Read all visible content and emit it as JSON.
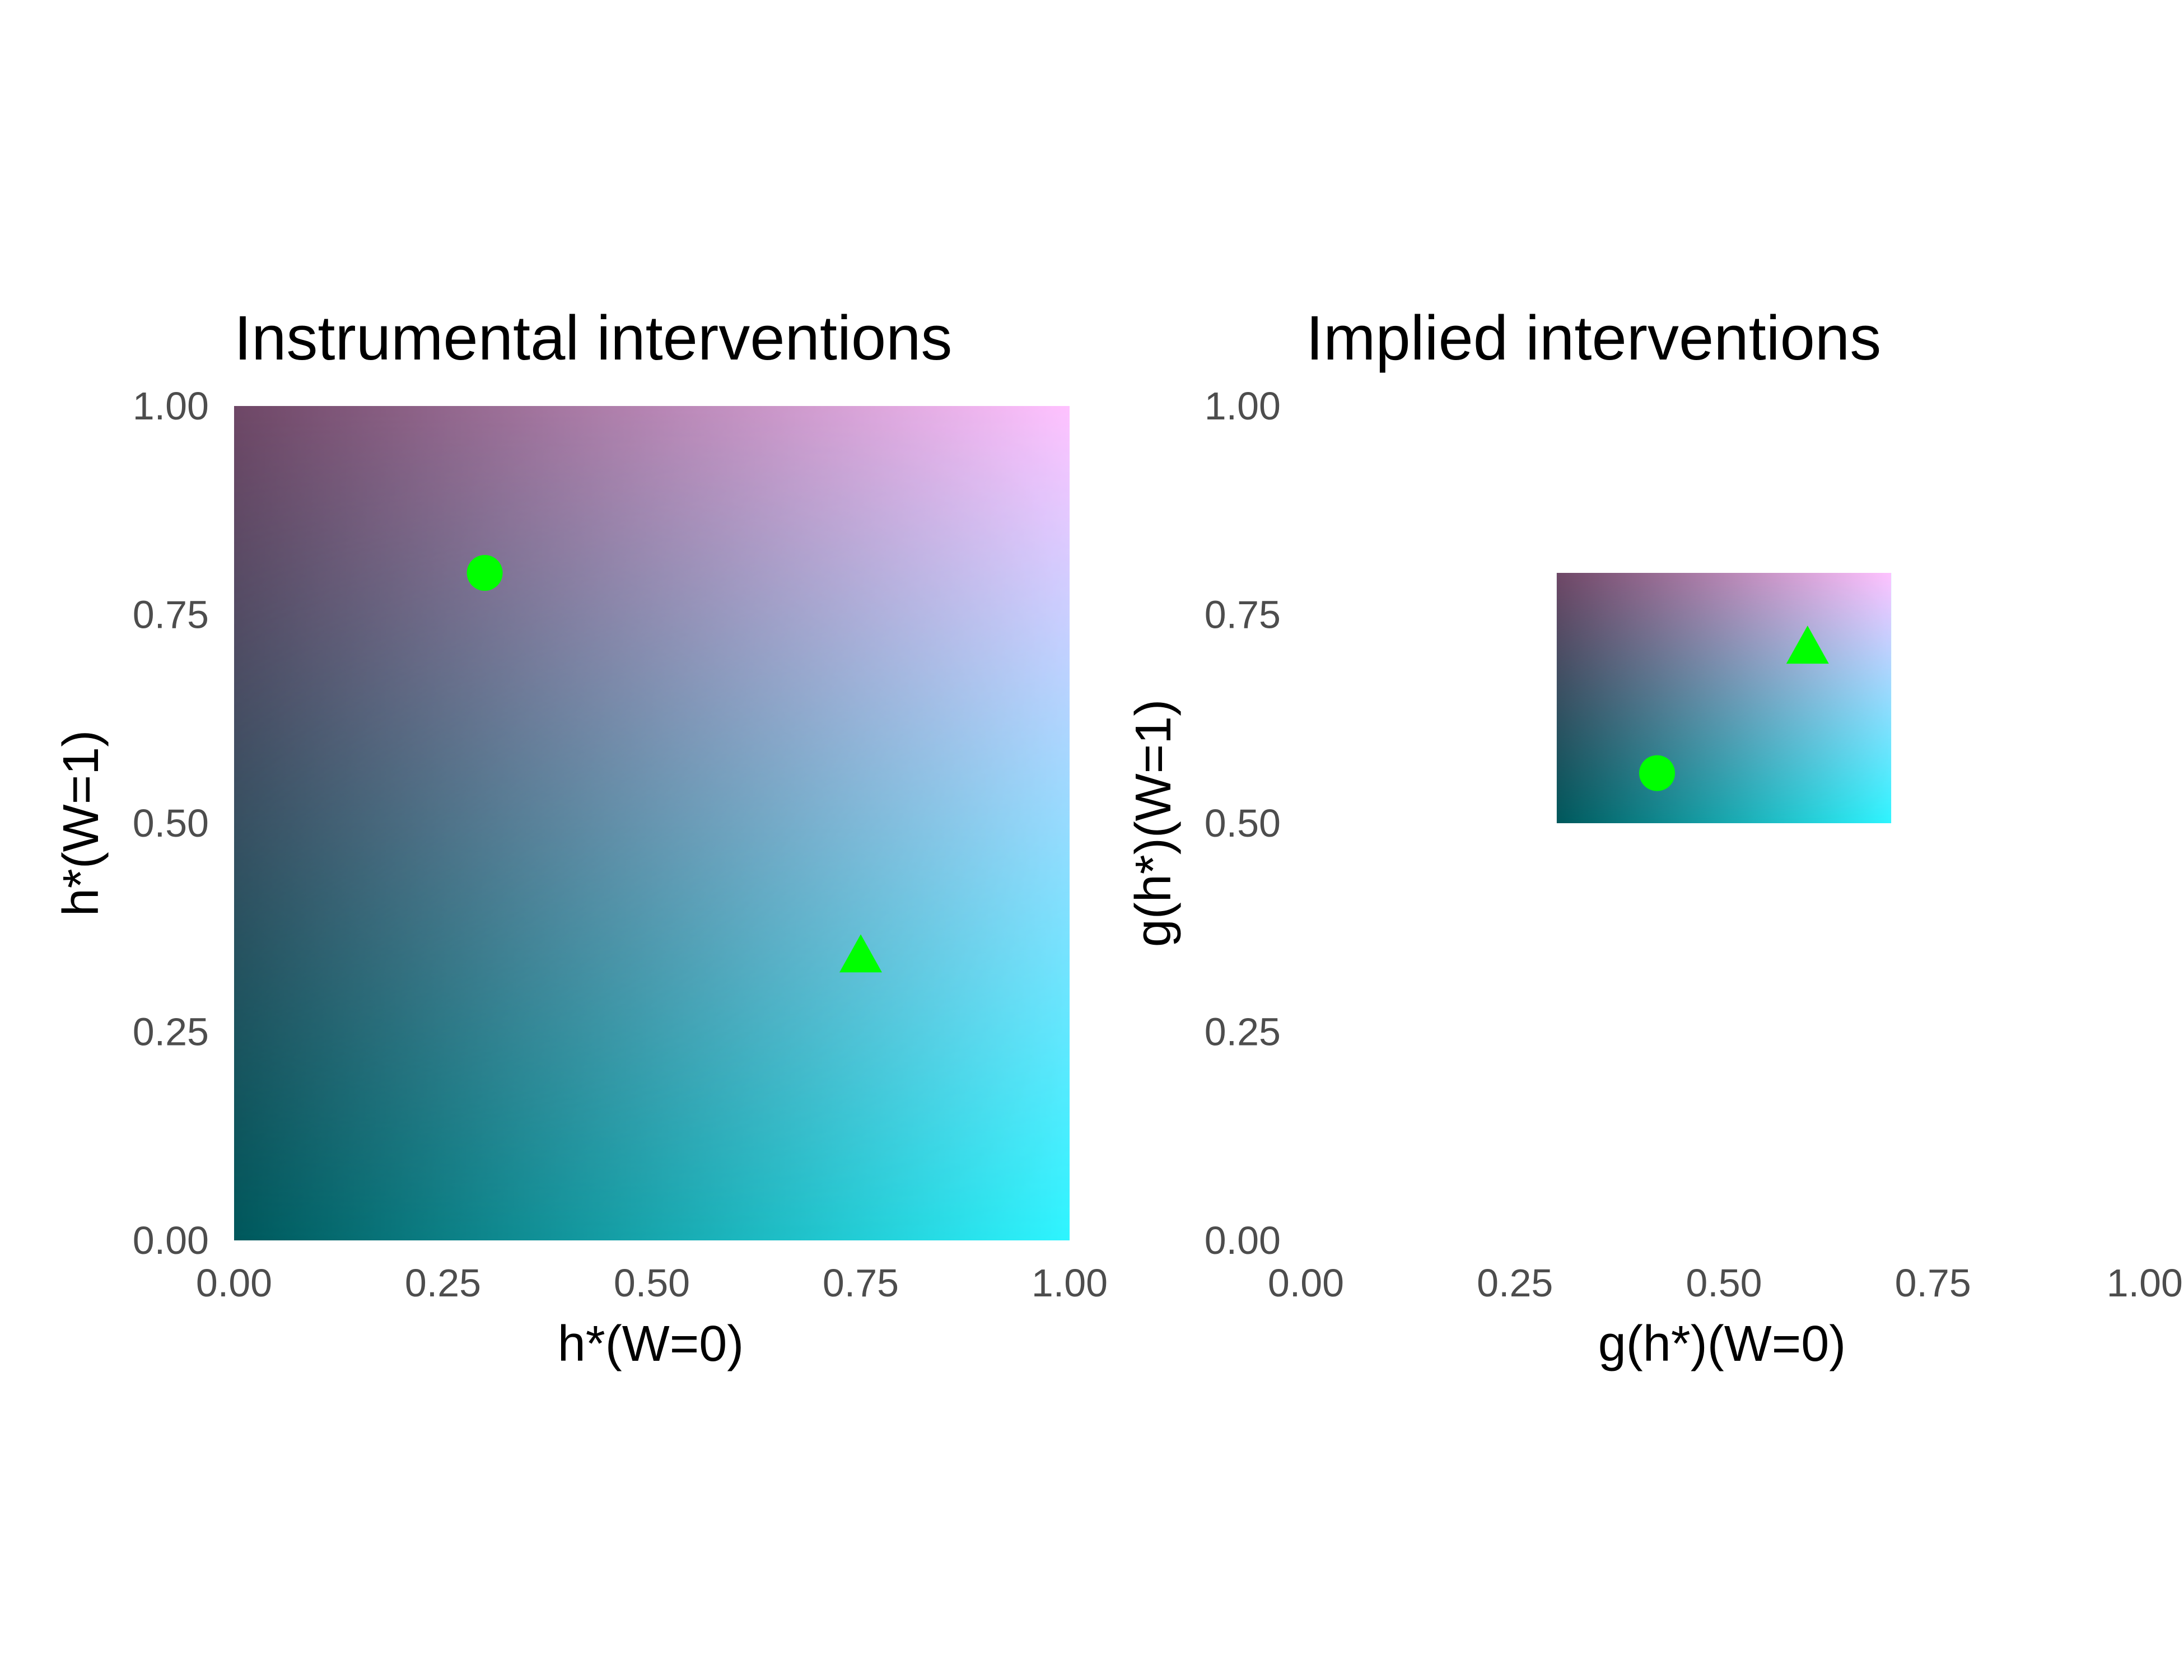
{
  "colors": {
    "corner_bottom_left": "#00585c",
    "corner_bottom_right": "#2ef5ff",
    "corner_top_left": "#6e4766",
    "corner_top_right": "#ffc2ff",
    "marker": "#00ff00",
    "tick_text": "#4d4d4d",
    "title_text": "#000000"
  },
  "chart_data": [
    {
      "type": "scatter",
      "title": "Instrumental interventions",
      "xlabel": "h*(W=0)",
      "ylabel": "h*(W=1)",
      "xlim": [
        0,
        1
      ],
      "ylim": [
        0,
        1
      ],
      "grid": false,
      "background_region": {
        "x": [
          0,
          1
        ],
        "y": [
          0,
          1
        ]
      },
      "x_ticks": [
        "0.00",
        "0.25",
        "0.50",
        "0.75",
        "1.00"
      ],
      "y_ticks": [
        "0.00",
        "0.25",
        "0.50",
        "0.75",
        "1.00"
      ],
      "points": [
        {
          "x": 0.3,
          "y": 0.8,
          "shape": "circle"
        },
        {
          "x": 0.75,
          "y": 0.34,
          "shape": "triangle"
        }
      ]
    },
    {
      "type": "scatter",
      "title": "Implied interventions",
      "xlabel": "g(h*)(W=0)",
      "ylabel": "g(h*)(W=1)",
      "xlim": [
        0,
        1
      ],
      "ylim": [
        0,
        1
      ],
      "grid": false,
      "background_region": {
        "x": [
          0.3,
          0.7
        ],
        "y": [
          0.5,
          0.8
        ]
      },
      "x_ticks": [
        "0.00",
        "0.25",
        "0.50",
        "0.75",
        "1.00"
      ],
      "y_ticks": [
        "0.00",
        "0.25",
        "0.50",
        "0.75",
        "1.00"
      ],
      "points": [
        {
          "x": 0.42,
          "y": 0.56,
          "shape": "circle"
        },
        {
          "x": 0.6,
          "y": 0.71,
          "shape": "triangle"
        }
      ]
    }
  ]
}
